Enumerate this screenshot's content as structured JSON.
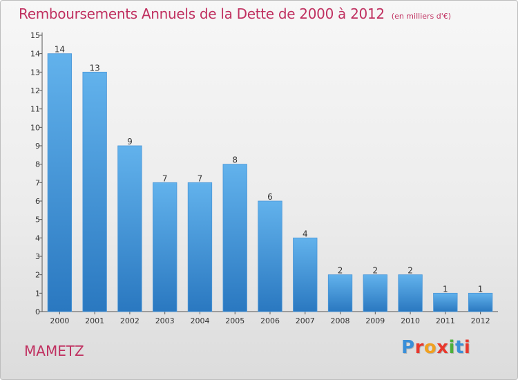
{
  "header": {
    "title": "Remboursements Annuels de la Dette de 2000 à 2012",
    "unit": "(en milliers d'€)"
  },
  "footer": {
    "commune": "MAMETZ",
    "logo": "Proxiti"
  },
  "colors": {
    "title": "#c03060",
    "bar_top": "#62b2ec",
    "bar_bottom": "#2a78c0",
    "logo_letters": [
      "#3a8fd8",
      "#e8372c",
      "#f0a020",
      "#e8372c",
      "#4caf3a",
      "#3a8fd8",
      "#e8372c"
    ]
  },
  "chart_data": {
    "type": "bar",
    "title": "Remboursements Annuels de la Dette de 2000 à 2012",
    "xlabel": "",
    "ylabel": "",
    "categories": [
      "2000",
      "2001",
      "2002",
      "2003",
      "2004",
      "2005",
      "2006",
      "2007",
      "2008",
      "2009",
      "2010",
      "2011",
      "2012"
    ],
    "values": [
      14,
      13,
      9,
      7,
      7,
      8,
      6,
      4,
      2,
      2,
      2,
      1,
      1
    ],
    "ylim": [
      0,
      15
    ],
    "yticks": [
      0,
      1,
      2,
      3,
      4,
      5,
      6,
      7,
      8,
      9,
      10,
      11,
      12,
      13,
      14,
      15
    ],
    "grid": false,
    "legend": "none"
  }
}
